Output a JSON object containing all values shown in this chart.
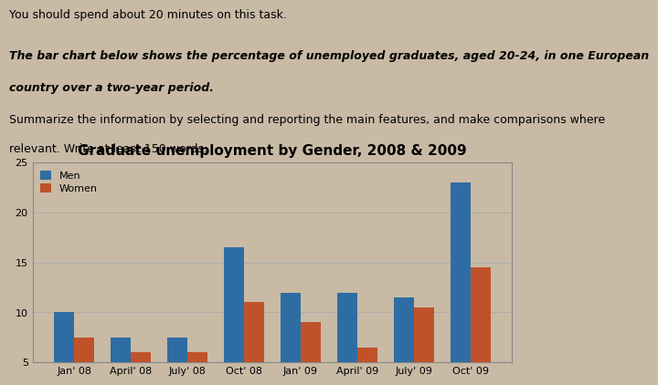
{
  "title": "Graduate unemployment by Gender, 2008 & 2009",
  "line1": "You should spend about 20 minutes on this task.",
  "line2": "The bar chart below shows the percentage of unemployed graduates, aged 20-24, in one European",
  "line3": "country over a two-year period.",
  "line4": "Summarize the information by selecting and reporting the main features, and make comparisons where",
  "line5": "relevant. Write at least 150 words.",
  "categories": [
    "Jan' 08",
    "April' 08",
    "July' 08",
    "Oct' 08",
    "Jan' 09",
    "April' 09",
    "July' 09",
    "Oct' 09"
  ],
  "men_values": [
    10,
    7.5,
    7.5,
    16.5,
    12,
    12,
    11.5,
    23
  ],
  "women_values": [
    7.5,
    6,
    6,
    11,
    9,
    6.5,
    10.5,
    14.5
  ],
  "men_color": "#2E6DA4",
  "women_color": "#C0522A",
  "ylim": [
    5,
    25
  ],
  "yticks": [
    5,
    10,
    15,
    20,
    25
  ],
  "legend_labels": [
    "Men",
    "Women"
  ],
  "bar_width": 0.35,
  "page_bg_color": "#C8BAA5",
  "chart_bg_color": "#C8BAA5",
  "chart_border_color": "#888888",
  "title_fontsize": 11,
  "tick_fontsize": 8,
  "text_fontsize": 9
}
